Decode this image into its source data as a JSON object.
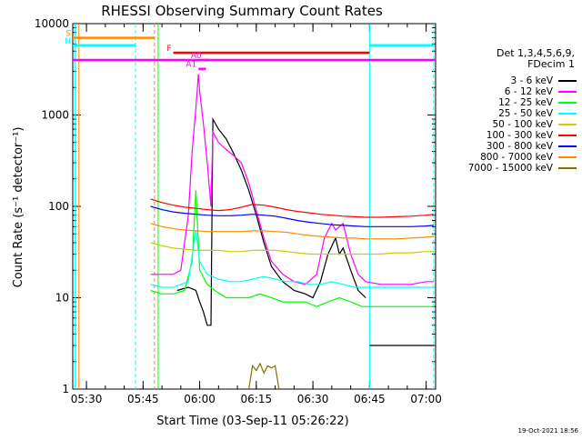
{
  "chart_data": {
    "type": "line",
    "title": "RHESSI Observing Summary Count Rates",
    "xlabel": "Start Time (03-Sep-11 05:26:22)",
    "ylabel": "Count Rate (s⁻¹ detector⁻¹)",
    "y_scale": "log",
    "ylim": [
      1,
      10000
    ],
    "xlim": [
      "05:26:22",
      "07:02:30"
    ],
    "y_ticks": [
      {
        "value": 1,
        "label": "1"
      },
      {
        "value": 10,
        "label": "10"
      },
      {
        "value": 100,
        "label": "100"
      },
      {
        "value": 1000,
        "label": "1000"
      },
      {
        "value": 10000,
        "label": "10000"
      }
    ],
    "x_ticks": [
      {
        "time": "05:30",
        "label": "05:30"
      },
      {
        "time": "05:45",
        "label": "05:45"
      },
      {
        "time": "06:00",
        "label": "06:00"
      },
      {
        "time": "06:15",
        "label": "06:15"
      },
      {
        "time": "06:30",
        "label": "06:30"
      },
      {
        "time": "06:45",
        "label": "06:45"
      },
      {
        "time": "07:00",
        "label": "07:00"
      }
    ],
    "legend_title": [
      "Det 1,3,4,5,6,9,",
      "FDecim 1"
    ],
    "legend_position": "right",
    "series": [
      {
        "name": "3 - 6 keV",
        "color": "#000000",
        "points": [
          [
            "05:54",
            12
          ],
          [
            "05:57",
            13
          ],
          [
            "05:59",
            12
          ],
          [
            "06:00",
            9
          ],
          [
            "06:01",
            7
          ],
          [
            "06:02",
            5
          ],
          [
            "06:03",
            5
          ],
          [
            "06:03:30",
            900
          ],
          [
            "06:05",
            700
          ],
          [
            "06:07",
            550
          ],
          [
            "06:09",
            380
          ],
          [
            "06:11",
            250
          ],
          [
            "06:13",
            150
          ],
          [
            "06:15",
            80
          ],
          [
            "06:17",
            40
          ],
          [
            "06:19",
            22
          ],
          [
            "06:22",
            15
          ],
          [
            "06:25",
            12
          ],
          [
            "06:28",
            11
          ],
          [
            "06:30",
            10
          ],
          [
            "06:32",
            15
          ],
          [
            "06:34",
            30
          ],
          [
            "06:36",
            45
          ],
          [
            "06:37",
            30
          ],
          [
            "06:38",
            35
          ],
          [
            "06:40",
            20
          ],
          [
            "06:42",
            12
          ],
          [
            "06:44",
            10
          ]
        ]
      },
      {
        "name": "6 - 12 keV",
        "color": "#ff00ff",
        "points": [
          [
            "05:47",
            18
          ],
          [
            "05:50",
            18
          ],
          [
            "05:53",
            18
          ],
          [
            "05:55",
            20
          ],
          [
            "05:57",
            80
          ],
          [
            "05:58",
            400
          ],
          [
            "05:59",
            1200
          ],
          [
            "05:59:40",
            2800
          ],
          [
            "06:00",
            1800
          ],
          [
            "06:01",
            800
          ],
          [
            "06:02",
            300
          ],
          [
            "06:03",
            100
          ],
          [
            "06:03:30",
            650
          ],
          [
            "06:05",
            500
          ],
          [
            "06:07",
            420
          ],
          [
            "06:09",
            360
          ],
          [
            "06:11",
            300
          ],
          [
            "06:13",
            180
          ],
          [
            "06:15",
            90
          ],
          [
            "06:17",
            45
          ],
          [
            "06:19",
            25
          ],
          [
            "06:22",
            18
          ],
          [
            "06:25",
            15
          ],
          [
            "06:28",
            14
          ],
          [
            "06:31",
            18
          ],
          [
            "06:33",
            45
          ],
          [
            "06:35",
            65
          ],
          [
            "06:36",
            55
          ],
          [
            "06:37",
            60
          ],
          [
            "06:38",
            65
          ],
          [
            "06:40",
            30
          ],
          [
            "06:42",
            18
          ],
          [
            "06:44",
            15
          ],
          [
            "06:48",
            14
          ],
          [
            "06:52",
            14
          ],
          [
            "06:56",
            14
          ],
          [
            "07:00",
            15
          ],
          [
            "07:02",
            15
          ]
        ]
      },
      {
        "name": "12 - 25 keV",
        "color": "#00ff00",
        "points": [
          [
            "05:47",
            12
          ],
          [
            "05:50",
            11
          ],
          [
            "05:53",
            11
          ],
          [
            "05:56",
            12
          ],
          [
            "05:58",
            25
          ],
          [
            "05:59",
            150
          ],
          [
            "05:59:40",
            40
          ],
          [
            "06:00",
            20
          ],
          [
            "06:02",
            14
          ],
          [
            "06:04",
            12
          ],
          [
            "06:07",
            10
          ],
          [
            "06:10",
            10
          ],
          [
            "06:13",
            10
          ],
          [
            "06:16",
            11
          ],
          [
            "06:19",
            10
          ],
          [
            "06:22",
            9
          ],
          [
            "06:25",
            9
          ],
          [
            "06:28",
            9
          ],
          [
            "06:31",
            8
          ],
          [
            "06:34",
            9
          ],
          [
            "06:37",
            10
          ],
          [
            "06:40",
            9
          ],
          [
            "06:43",
            8
          ],
          [
            "06:46",
            8
          ],
          [
            "06:50",
            8
          ],
          [
            "06:55",
            8
          ],
          [
            "07:00",
            8
          ],
          [
            "07:02",
            8
          ]
        ]
      },
      {
        "name": "25 - 50 keV",
        "color": "#00ffff",
        "points": [
          [
            "05:47",
            14
          ],
          [
            "05:50",
            13
          ],
          [
            "05:53",
            13
          ],
          [
            "05:55",
            14
          ],
          [
            "05:57",
            15
          ],
          [
            "05:59",
            55
          ],
          [
            "06:00",
            25
          ],
          [
            "06:02",
            18
          ],
          [
            "06:05",
            16
          ],
          [
            "06:08",
            15
          ],
          [
            "06:11",
            15
          ],
          [
            "06:14",
            16
          ],
          [
            "06:17",
            17
          ],
          [
            "06:20",
            16
          ],
          [
            "06:23",
            15
          ],
          [
            "06:26",
            15
          ],
          [
            "06:29",
            14
          ],
          [
            "06:32",
            14
          ],
          [
            "06:35",
            15
          ],
          [
            "06:38",
            14
          ],
          [
            "06:41",
            13
          ],
          [
            "06:44",
            13
          ],
          [
            "06:48",
            13
          ],
          [
            "06:52",
            13
          ],
          [
            "06:56",
            13
          ],
          [
            "07:00",
            13
          ],
          [
            "07:02",
            13
          ]
        ]
      },
      {
        "name": "50 - 100 keV",
        "color": "#cccc00",
        "points": [
          [
            "05:47",
            40
          ],
          [
            "05:50",
            37
          ],
          [
            "05:53",
            35
          ],
          [
            "05:56",
            34
          ],
          [
            "05:59",
            33
          ],
          [
            "06:02",
            33
          ],
          [
            "06:05",
            33
          ],
          [
            "06:08",
            32
          ],
          [
            "06:11",
            32
          ],
          [
            "06:14",
            33
          ],
          [
            "06:17",
            33
          ],
          [
            "06:20",
            33
          ],
          [
            "06:23",
            32
          ],
          [
            "06:26",
            31
          ],
          [
            "06:29",
            30
          ],
          [
            "06:32",
            30
          ],
          [
            "06:35",
            30
          ],
          [
            "06:38",
            30
          ],
          [
            "06:41",
            30
          ],
          [
            "06:44",
            30
          ],
          [
            "06:48",
            30
          ],
          [
            "06:52",
            31
          ],
          [
            "06:56",
            31
          ],
          [
            "07:00",
            32
          ],
          [
            "07:02",
            32
          ]
        ]
      },
      {
        "name": "100 - 300 keV",
        "color": "#ff0000",
        "points": [
          [
            "05:47",
            120
          ],
          [
            "05:50",
            110
          ],
          [
            "05:53",
            103
          ],
          [
            "05:56",
            98
          ],
          [
            "05:59",
            95
          ],
          [
            "06:02",
            92
          ],
          [
            "06:05",
            90
          ],
          [
            "06:08",
            92
          ],
          [
            "06:11",
            98
          ],
          [
            "06:14",
            105
          ],
          [
            "06:17",
            103
          ],
          [
            "06:20",
            98
          ],
          [
            "06:23",
            92
          ],
          [
            "06:26",
            88
          ],
          [
            "06:29",
            85
          ],
          [
            "06:32",
            82
          ],
          [
            "06:35",
            80
          ],
          [
            "06:38",
            78
          ],
          [
            "06:41",
            77
          ],
          [
            "06:44",
            76
          ],
          [
            "06:48",
            76
          ],
          [
            "06:52",
            77
          ],
          [
            "06:56",
            78
          ],
          [
            "07:00",
            80
          ],
          [
            "07:02",
            82
          ]
        ]
      },
      {
        "name": "300 - 800 keV",
        "color": "#0000ff",
        "points": [
          [
            "05:47",
            100
          ],
          [
            "05:50",
            92
          ],
          [
            "05:53",
            87
          ],
          [
            "05:56",
            84
          ],
          [
            "05:59",
            82
          ],
          [
            "06:02",
            80
          ],
          [
            "06:05",
            79
          ],
          [
            "06:08",
            79
          ],
          [
            "06:11",
            80
          ],
          [
            "06:14",
            82
          ],
          [
            "06:17",
            80
          ],
          [
            "06:20",
            78
          ],
          [
            "06:23",
            74
          ],
          [
            "06:26",
            70
          ],
          [
            "06:29",
            67
          ],
          [
            "06:32",
            65
          ],
          [
            "06:35",
            63
          ],
          [
            "06:38",
            62
          ],
          [
            "06:41",
            61
          ],
          [
            "06:44",
            60
          ],
          [
            "06:48",
            60
          ],
          [
            "06:52",
            60
          ],
          [
            "06:56",
            60
          ],
          [
            "07:00",
            61
          ],
          [
            "07:02",
            62
          ]
        ]
      },
      {
        "name": "800 - 7000 keV",
        "color": "#ff8c00",
        "points": [
          [
            "05:47",
            65
          ],
          [
            "05:50",
            60
          ],
          [
            "05:53",
            57
          ],
          [
            "05:56",
            55
          ],
          [
            "05:59",
            54
          ],
          [
            "06:02",
            53
          ],
          [
            "06:05",
            53
          ],
          [
            "06:08",
            53
          ],
          [
            "06:11",
            53
          ],
          [
            "06:14",
            54
          ],
          [
            "06:17",
            54
          ],
          [
            "06:20",
            53
          ],
          [
            "06:23",
            52
          ],
          [
            "06:26",
            50
          ],
          [
            "06:29",
            48
          ],
          [
            "06:32",
            47
          ],
          [
            "06:35",
            46
          ],
          [
            "06:38",
            45
          ],
          [
            "06:41",
            45
          ],
          [
            "06:44",
            44
          ],
          [
            "06:48",
            44
          ],
          [
            "06:52",
            44
          ],
          [
            "06:56",
            45
          ],
          [
            "07:00",
            46
          ],
          [
            "07:02",
            47
          ]
        ]
      },
      {
        "name": "7000 - 15000 keV",
        "color": "#807000",
        "points": [
          [
            "06:13",
            1
          ],
          [
            "06:14",
            1.8
          ],
          [
            "06:15",
            1.6
          ],
          [
            "06:16",
            1.9
          ],
          [
            "06:17",
            1.5
          ],
          [
            "06:18",
            1.8
          ],
          [
            "06:19",
            1.7
          ],
          [
            "06:20",
            1.8
          ],
          [
            "06:21",
            1
          ]
        ]
      }
    ],
    "extra_traces": [
      {
        "label": "",
        "color": "#000000",
        "points": [
          [
            "06:45",
            3
          ],
          [
            "06:48",
            3
          ],
          [
            "06:52",
            3
          ],
          [
            "06:56",
            3
          ],
          [
            "07:00",
            3
          ],
          [
            "07:02",
            3
          ]
        ]
      }
    ],
    "attenuator_segments": [
      {
        "label": "S",
        "color": "#ff8c00",
        "start": "05:26:22",
        "end": "05:48",
        "value": 7000
      },
      {
        "label": "N",
        "color": "#00ffff",
        "start": "05:26:22",
        "end": "05:43",
        "value": 5800
      },
      {
        "label": "",
        "color": "#00ffff",
        "start": "06:45",
        "end": "07:02",
        "value": 5800
      },
      {
        "label": "F",
        "color": "#ff0000",
        "start": "05:53",
        "end": "06:45",
        "value": 4800
      },
      {
        "label": "A0",
        "color": "#ff00ff",
        "start": "06:01",
        "end": "06:02:30",
        "value": 4000
      },
      {
        "label": "A1",
        "color": "#ff00ff",
        "start": "05:59:40",
        "end": "06:01:40",
        "value": 3200
      },
      {
        "label": "",
        "color": "#ff00ff",
        "start": "05:26:22",
        "end": "07:02:30",
        "value": 4000
      }
    ],
    "vertical_markers": [
      {
        "time": "05:27",
        "color": "#00ffff",
        "style": "solid"
      },
      {
        "time": "05:28",
        "color": "#ff8c00",
        "style": "solid"
      },
      {
        "time": "05:43",
        "color": "#00ffff",
        "style": "dashed"
      },
      {
        "time": "05:48",
        "color": "#ff8c00",
        "style": "dashed"
      },
      {
        "time": "05:49",
        "color": "#00ff00",
        "style": "solid"
      },
      {
        "time": "06:45",
        "color": "#00ffff",
        "style": "solid"
      },
      {
        "time": "07:02",
        "color": "#00ffff",
        "style": "dashed"
      }
    ]
  },
  "timestamp": "19-Oct-2021 18:56"
}
